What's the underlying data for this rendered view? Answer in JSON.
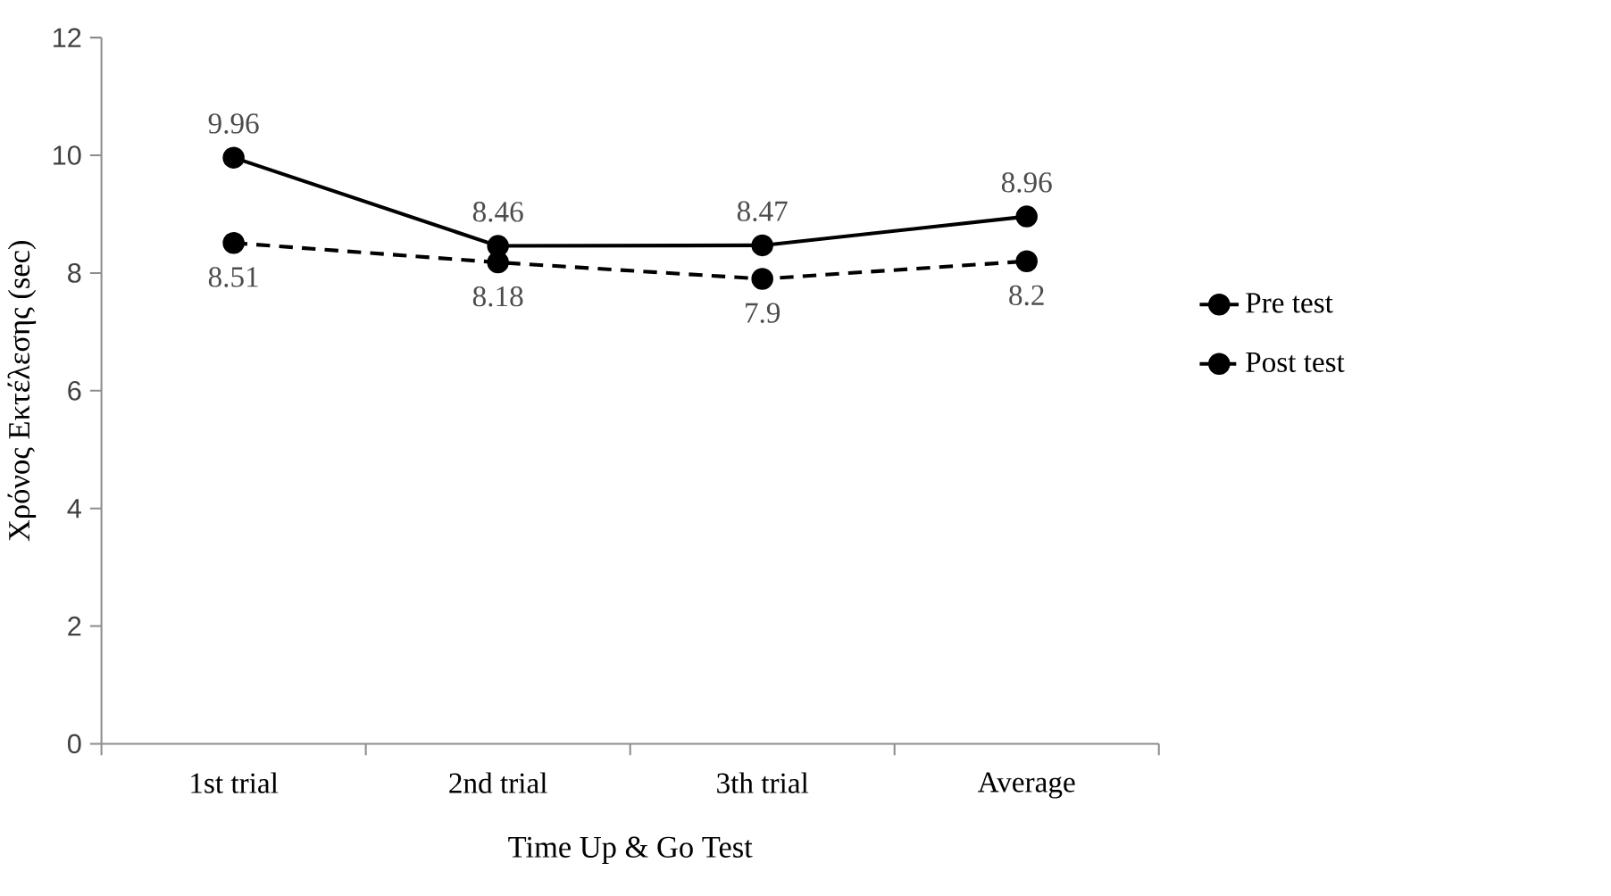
{
  "chart_data": {
    "type": "line",
    "xlabel": "Time Up & Go Test",
    "ylabel": "Χρόνος Εκτέλεσης (sec)",
    "categories": [
      "1st trial",
      "2nd trial",
      "3th trial",
      "Average"
    ],
    "series": [
      {
        "name": "Pre test",
        "color": "#000000",
        "line_style": "solid",
        "values": [
          9.96,
          8.46,
          8.47,
          8.96
        ]
      },
      {
        "name": "Post test",
        "color": "#000000",
        "line_style": "dashed",
        "values": [
          8.51,
          8.18,
          7.9,
          8.2
        ]
      }
    ],
    "ylim": [
      0,
      12
    ],
    "yticks": [
      0,
      2,
      4,
      6,
      8,
      10,
      12
    ],
    "grid": false,
    "legend": "right",
    "marker": "circle",
    "data_labels": true
  }
}
